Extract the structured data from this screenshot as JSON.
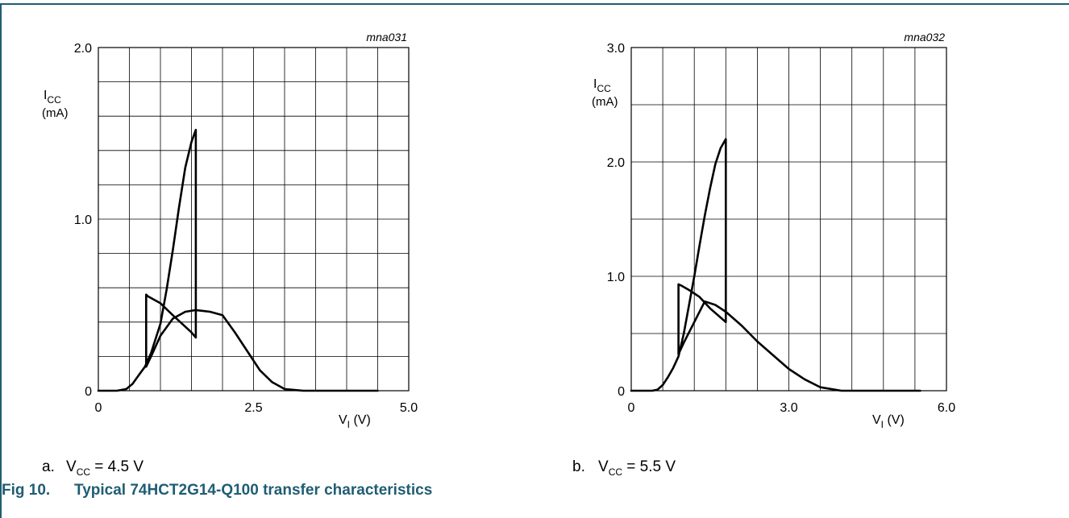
{
  "figure": {
    "number": "Fig 10.",
    "title": "Typical 74HCT2G14-Q100 transfer characteristics"
  },
  "chart_data": [
    {
      "type": "line",
      "id_label": "mna031",
      "ylabel": "I",
      "ylabel_sub": "CC",
      "yunit": "(mA)",
      "xlabel": "V",
      "xlabel_sub": "I",
      "xunit": "(V)",
      "xlim": [
        0,
        5.0
      ],
      "ylim": [
        0,
        2.0
      ],
      "x_ticks": [
        {
          "v": 0,
          "label": "0"
        },
        {
          "v": 2.5,
          "label": "2.5"
        },
        {
          "v": 5.0,
          "label": "5.0"
        }
      ],
      "y_ticks": [
        {
          "v": 0,
          "label": "0"
        },
        {
          "v": 1.0,
          "label": "1.0"
        },
        {
          "v": 2.0,
          "label": "2.0"
        }
      ],
      "x_grid_step": 0.5,
      "y_grid_step": 0.2,
      "caption_prefix": "a.",
      "caption_var": "V",
      "caption_sub": "CC",
      "caption_value": "= 4.5 V",
      "series": [
        {
          "x": [
            0,
            0.3,
            0.45,
            0.55,
            0.65,
            0.75,
            0.85,
            1.0,
            1.1,
            1.2,
            1.3,
            1.4,
            1.5,
            1.57,
            1.57,
            1.5,
            1.2,
            1.0,
            0.9,
            0.8,
            0.77,
            0.77,
            0.85,
            1.0,
            1.2,
            1.4,
            1.57,
            1.8,
            2.0,
            2.2,
            2.4,
            2.6,
            2.8,
            3.0,
            3.3,
            3.8,
            4.5
          ],
          "y": [
            0,
            0,
            0.01,
            0.04,
            0.09,
            0.14,
            0.22,
            0.39,
            0.59,
            0.82,
            1.07,
            1.3,
            1.45,
            1.52,
            0.31,
            0.34,
            0.44,
            0.51,
            0.53,
            0.55,
            0.56,
            0.14,
            0.2,
            0.32,
            0.42,
            0.46,
            0.47,
            0.46,
            0.44,
            0.34,
            0.23,
            0.12,
            0.05,
            0.01,
            0,
            0,
            0
          ]
        }
      ]
    },
    {
      "type": "line",
      "id_label": "mna032",
      "ylabel": "I",
      "ylabel_sub": "CC",
      "yunit": "(mA)",
      "xlabel": "V",
      "xlabel_sub": "I",
      "xunit": "(V)",
      "xlim": [
        0,
        6.0
      ],
      "ylim": [
        0,
        3.0
      ],
      "x_ticks": [
        {
          "v": 0,
          "label": "0"
        },
        {
          "v": 3.0,
          "label": "3.0"
        },
        {
          "v": 6.0,
          "label": "6.0"
        }
      ],
      "y_ticks": [
        {
          "v": 0,
          "label": "0"
        },
        {
          "v": 1.0,
          "label": "1.0"
        },
        {
          "v": 2.0,
          "label": "2.0"
        },
        {
          "v": 3.0,
          "label": "3.0"
        }
      ],
      "x_grid_step": 0.6,
      "y_grid_step": 0.5,
      "caption_prefix": "b.",
      "caption_var": "V",
      "caption_sub": "CC",
      "caption_value": "= 5.5 V",
      "series": [
        {
          "x": [
            0,
            0.4,
            0.5,
            0.6,
            0.7,
            0.8,
            0.9,
            1.0,
            1.1,
            1.2,
            1.3,
            1.4,
            1.5,
            1.6,
            1.7,
            1.8,
            1.8,
            1.7,
            1.5,
            1.3,
            1.1,
            0.95,
            0.9,
            0.9,
            1.0,
            1.2,
            1.4,
            1.6,
            1.8,
            2.1,
            2.4,
            2.7,
            3.0,
            3.3,
            3.6,
            4.0,
            4.5,
            5.0,
            5.5
          ],
          "y": [
            0,
            0,
            0.01,
            0.05,
            0.12,
            0.2,
            0.3,
            0.5,
            0.75,
            1.0,
            1.27,
            1.53,
            1.77,
            1.98,
            2.12,
            2.2,
            0.6,
            0.64,
            0.72,
            0.82,
            0.88,
            0.92,
            0.93,
            0.32,
            0.42,
            0.6,
            0.78,
            0.75,
            0.69,
            0.57,
            0.43,
            0.31,
            0.19,
            0.1,
            0.03,
            0,
            0,
            0,
            0
          ]
        }
      ]
    }
  ]
}
